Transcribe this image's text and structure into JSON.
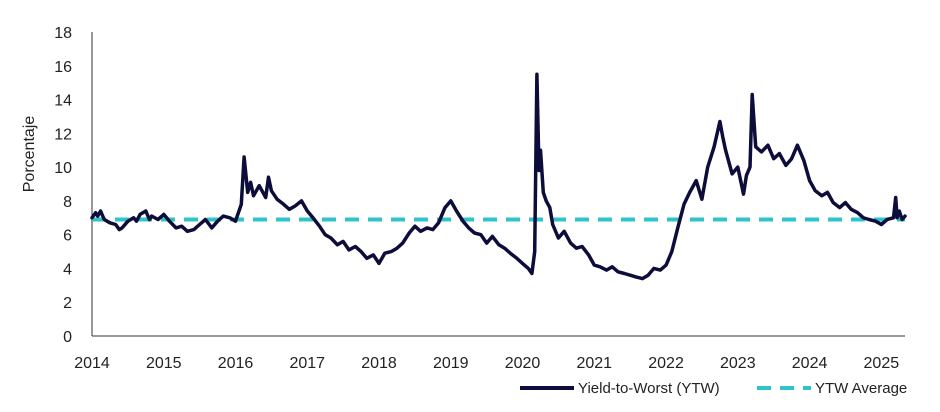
{
  "chart_data": {
    "type": "line",
    "ylabel": "Porcentaje",
    "xlabel": "",
    "title": "",
    "ylim": [
      0,
      18
    ],
    "xlim": [
      2014,
      2025.33
    ],
    "y_ticks": [
      0,
      2,
      4,
      6,
      8,
      10,
      12,
      14,
      16,
      18
    ],
    "x_ticks": [
      2014,
      2015,
      2016,
      2017,
      2018,
      2019,
      2020,
      2021,
      2022,
      2023,
      2024,
      2025
    ],
    "x_tick_labels": [
      "2014",
      "2015",
      "2016",
      "2017",
      "2018",
      "2019",
      "2020",
      "2021",
      "2022",
      "2023",
      "2024",
      "2025"
    ],
    "grid": false,
    "legend_position": "bottom-right",
    "colors": {
      "ytw": "#0d0d3b",
      "average": "#2ec4c9"
    },
    "series": [
      {
        "name": "Yield-to-Worst (YTW)",
        "style": "solid",
        "x": [
          2014.0,
          2014.05,
          2014.08,
          2014.12,
          2014.17,
          2014.25,
          2014.33,
          2014.38,
          2014.42,
          2014.5,
          2014.58,
          2014.62,
          2014.67,
          2014.75,
          2014.8,
          2014.83,
          2014.92,
          2015.0,
          2015.08,
          2015.17,
          2015.25,
          2015.33,
          2015.42,
          2015.5,
          2015.58,
          2015.67,
          2015.75,
          2015.83,
          2015.92,
          2016.0,
          2016.04,
          2016.08,
          2016.12,
          2016.17,
          2016.21,
          2016.25,
          2016.33,
          2016.42,
          2016.46,
          2016.5,
          2016.58,
          2016.67,
          2016.75,
          2016.83,
          2016.92,
          2017.0,
          2017.08,
          2017.17,
          2017.25,
          2017.33,
          2017.42,
          2017.5,
          2017.58,
          2017.67,
          2017.75,
          2017.83,
          2017.92,
          2018.0,
          2018.08,
          2018.17,
          2018.25,
          2018.33,
          2018.42,
          2018.5,
          2018.58,
          2018.67,
          2018.75,
          2018.83,
          2018.92,
          2019.0,
          2019.08,
          2019.17,
          2019.25,
          2019.33,
          2019.42,
          2019.5,
          2019.58,
          2019.67,
          2019.75,
          2019.83,
          2019.92,
          2020.0,
          2020.08,
          2020.13,
          2020.17,
          2020.2,
          2020.23,
          2020.25,
          2020.29,
          2020.33,
          2020.38,
          2020.42,
          2020.5,
          2020.58,
          2020.67,
          2020.75,
          2020.83,
          2020.92,
          2021.0,
          2021.08,
          2021.17,
          2021.25,
          2021.33,
          2021.42,
          2021.5,
          2021.58,
          2021.67,
          2021.75,
          2021.83,
          2021.92,
          2022.0,
          2022.08,
          2022.17,
          2022.25,
          2022.33,
          2022.42,
          2022.5,
          2022.58,
          2022.67,
          2022.75,
          2022.79,
          2022.83,
          2022.92,
          2023.0,
          2023.08,
          2023.12,
          2023.17,
          2023.2,
          2023.25,
          2023.33,
          2023.42,
          2023.5,
          2023.58,
          2023.67,
          2023.75,
          2023.83,
          2023.92,
          2024.0,
          2024.08,
          2024.17,
          2024.25,
          2024.33,
          2024.42,
          2024.5,
          2024.58,
          2024.67,
          2024.75,
          2024.83,
          2024.92,
          2025.0,
          2025.08,
          2025.17,
          2025.2,
          2025.22,
          2025.25,
          2025.29,
          2025.33
        ],
        "values": [
          7.0,
          7.3,
          7.1,
          7.4,
          6.9,
          6.7,
          6.6,
          6.3,
          6.4,
          6.8,
          7.0,
          6.8,
          7.2,
          7.4,
          6.9,
          7.1,
          6.9,
          7.2,
          6.8,
          6.4,
          6.5,
          6.2,
          6.3,
          6.6,
          6.9,
          6.4,
          6.8,
          7.1,
          7.0,
          6.8,
          7.3,
          7.8,
          10.6,
          8.5,
          9.1,
          8.3,
          8.9,
          8.2,
          9.4,
          8.6,
          8.1,
          7.8,
          7.5,
          7.7,
          8.0,
          7.4,
          7.0,
          6.5,
          6.0,
          5.8,
          5.4,
          5.6,
          5.1,
          5.3,
          5.0,
          4.6,
          4.8,
          4.3,
          4.9,
          5.0,
          5.2,
          5.5,
          6.1,
          6.5,
          6.2,
          6.4,
          6.3,
          6.7,
          7.6,
          8.0,
          7.4,
          6.8,
          6.4,
          6.1,
          6.0,
          5.5,
          5.9,
          5.4,
          5.2,
          4.9,
          4.6,
          4.3,
          4.0,
          3.7,
          5.0,
          15.5,
          9.8,
          11.0,
          8.5,
          8.0,
          7.6,
          6.6,
          5.8,
          6.2,
          5.5,
          5.2,
          5.3,
          4.8,
          4.2,
          4.1,
          3.9,
          4.1,
          3.8,
          3.7,
          3.6,
          3.5,
          3.4,
          3.6,
          4.0,
          3.9,
          4.2,
          5.0,
          6.5,
          7.8,
          8.5,
          9.2,
          8.1,
          10.0,
          11.2,
          12.7,
          11.8,
          11.0,
          9.6,
          10.0,
          8.4,
          9.5,
          10.0,
          14.3,
          11.2,
          10.9,
          11.3,
          10.5,
          10.8,
          10.1,
          10.5,
          11.3,
          10.4,
          9.2,
          8.6,
          8.3,
          8.5,
          7.9,
          7.6,
          7.9,
          7.5,
          7.3,
          7.0,
          6.9,
          6.8,
          6.6,
          6.9,
          7.0,
          8.2,
          7.0,
          7.4,
          6.9,
          7.1
        ]
      },
      {
        "name": "YTW Average",
        "style": "dashed",
        "x": [
          2014.0,
          2025.33
        ],
        "values": [
          6.9,
          6.9
        ]
      }
    ]
  }
}
